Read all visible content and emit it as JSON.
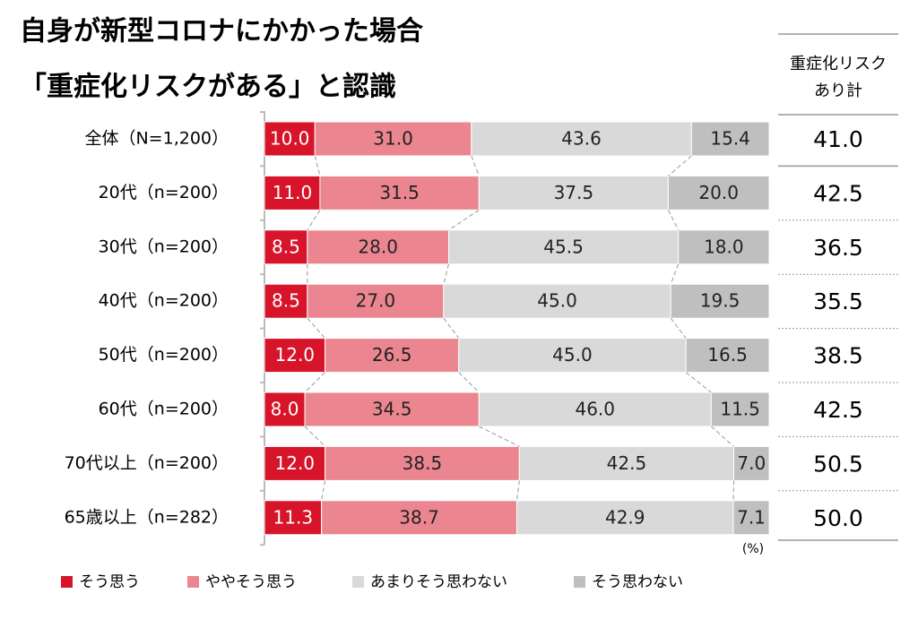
{
  "chart_data": {
    "type": "stacked-bar-horizontal",
    "title": [
      "自身が新型コロナにかかった場合",
      "「重症化リスクがある」と認識"
    ],
    "categories": [
      "全体（N=1,200）",
      "20代（n=200）",
      "30代（n=200）",
      "40代（n=200）",
      "50代（n=200）",
      "60代（n=200）",
      "70代以上（n=200）",
      "65歳以上（n=282）"
    ],
    "xlim": [
      0,
      100
    ],
    "unit": "(%)",
    "series": [
      {
        "name": "そう思う",
        "color": "#d7142a",
        "label_color": "#ffffff",
        "values": [
          10,
          11,
          8.5,
          8.5,
          12,
          8,
          12,
          11.3
        ],
        "value_labels": [
          "10.0",
          "11.0",
          "8.5",
          "8.5",
          "12.0",
          "8.0",
          "12.0",
          "11.3"
        ]
      },
      {
        "name": "ややそう思う",
        "color": "#eb8690",
        "label_color": "#222222",
        "values": [
          31,
          31.5,
          28,
          27,
          26.5,
          34.5,
          38.5,
          38.7
        ],
        "value_labels": [
          "31.0",
          "31.5",
          "28.0",
          "27.0",
          "26.5",
          "34.5",
          "38.5",
          "38.7"
        ]
      },
      {
        "name": "あまりそう思わない",
        "color": "#d9d9d9",
        "label_color": "#222222",
        "values": [
          43.6,
          37.5,
          45.5,
          45,
          45,
          46,
          42.5,
          42.9
        ],
        "value_labels": [
          "43.6",
          "37.5",
          "45.5",
          "45.0",
          "45.0",
          "46.0",
          "42.5",
          "42.9"
        ]
      },
      {
        "name": "そう思わない",
        "color": "#bfbfbf",
        "label_color": "#222222",
        "values": [
          15.4,
          20,
          18,
          19.5,
          16.5,
          11.5,
          7,
          7.1
        ],
        "value_labels": [
          "15.4",
          "20.0",
          "18.0",
          "19.5",
          "16.5",
          "11.5",
          "7.0",
          "7.1"
        ]
      }
    ],
    "totals": {
      "header": [
        "重症化リスク",
        "あり計"
      ],
      "values": [
        41,
        42.5,
        36.5,
        35.5,
        38.5,
        42.5,
        50.5,
        50
      ],
      "value_labels": [
        "41.0",
        "42.5",
        "36.5",
        "35.5",
        "38.5",
        "42.5",
        "50.5",
        "50.0"
      ]
    }
  }
}
